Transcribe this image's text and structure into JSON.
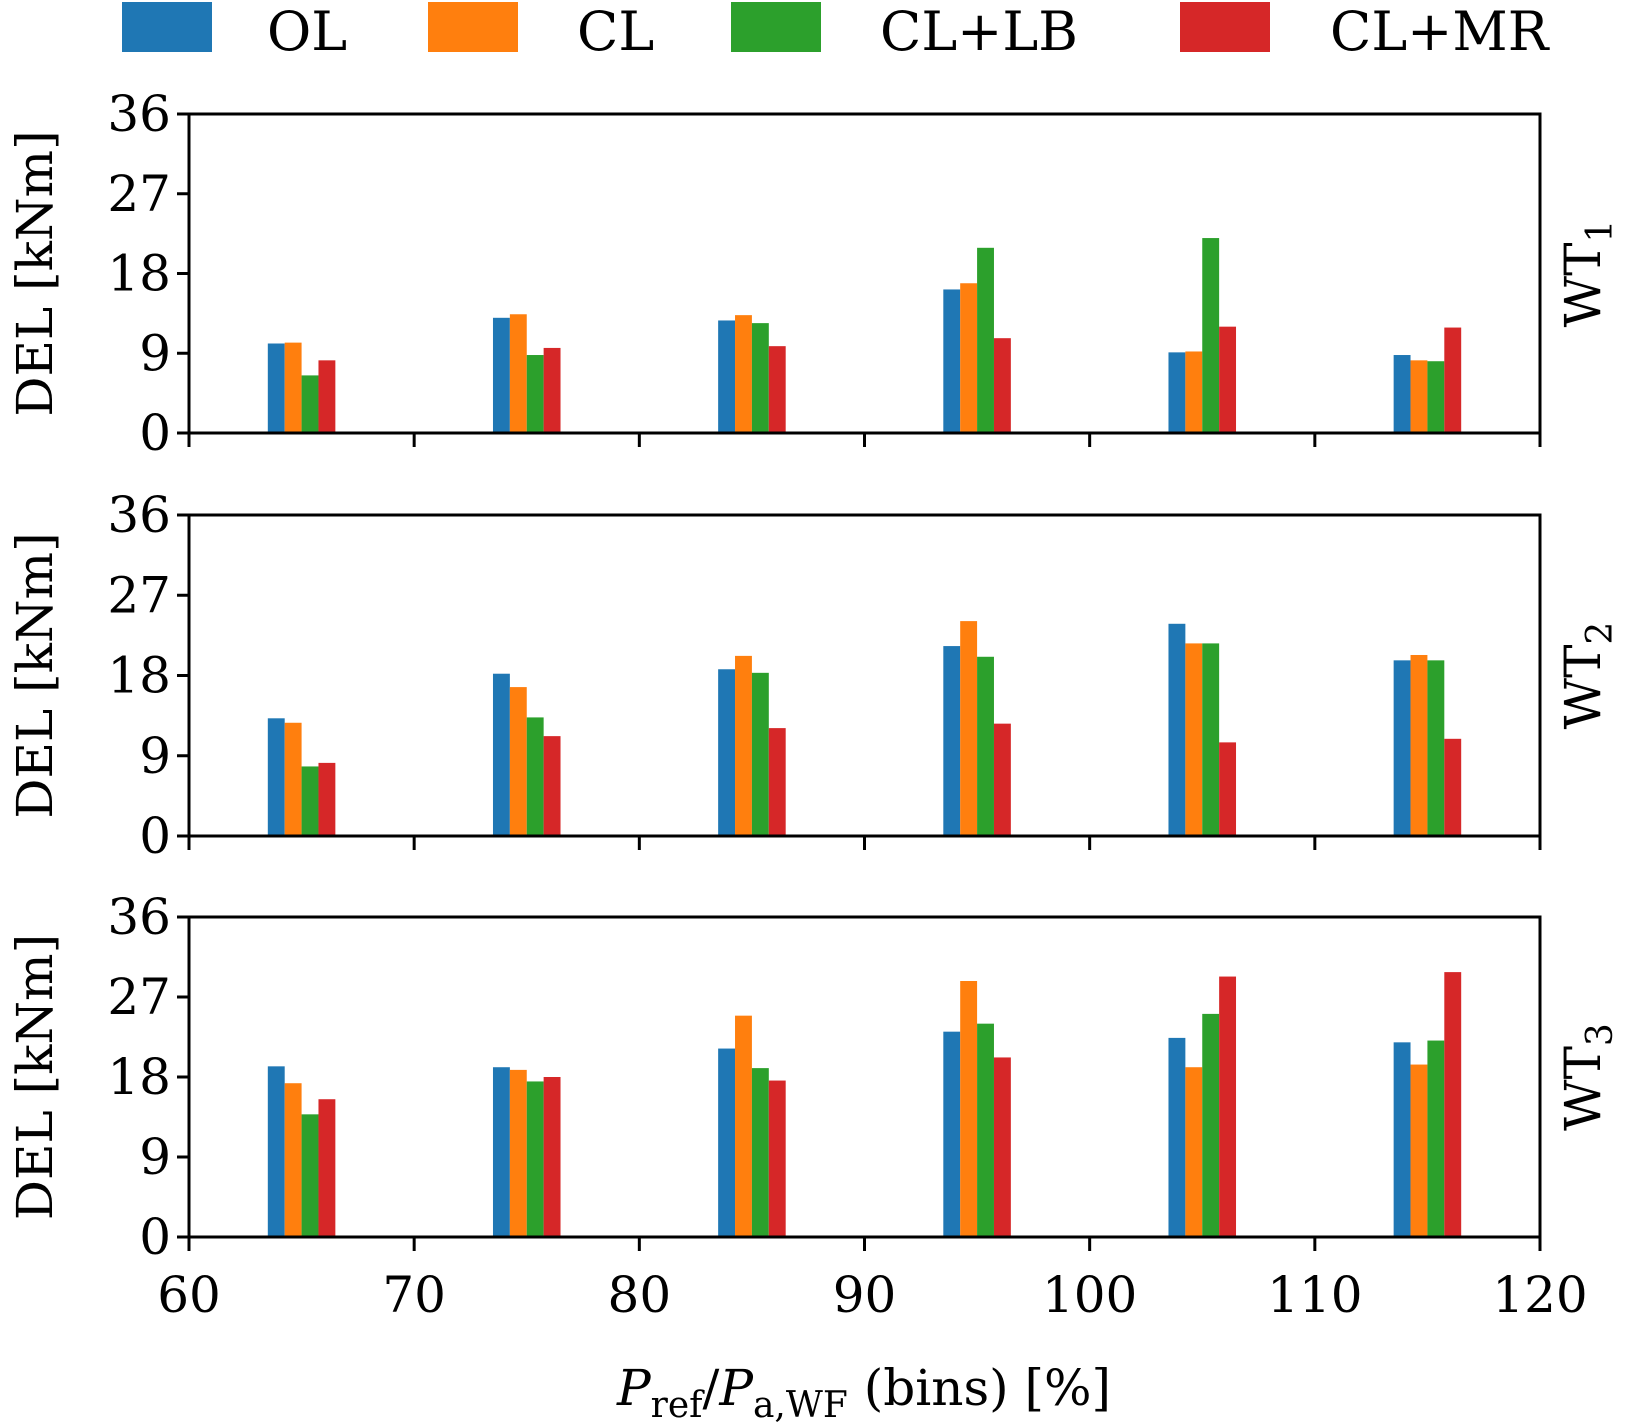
{
  "chart_data": {
    "type": "bar",
    "layout": "3 stacked subplots sharing x axis",
    "legend": {
      "placement": "top",
      "entries": [
        {
          "label": "OL",
          "color": "#1f77b4"
        },
        {
          "label": "CL",
          "color": "#ff7f0e"
        },
        {
          "label": "CL+LB",
          "color": "#2ca02c"
        },
        {
          "label": "CL+MR",
          "color": "#d62728"
        }
      ]
    },
    "xlabel": "P_ref / P_a,WF (bins) [%]",
    "xlabel_parts": {
      "P": "P",
      "ref": "ref",
      "slash": "/",
      "P2": "P",
      "sub2": "a,WF",
      "rest": " (bins) [%]"
    },
    "xlim": [
      60,
      120
    ],
    "xticks": [
      60,
      70,
      80,
      90,
      100,
      110,
      120
    ],
    "bin_centers": [
      65,
      75,
      85,
      95,
      105,
      115
    ],
    "series_names": [
      "OL",
      "CL",
      "CL+LB",
      "CL+MR"
    ],
    "subplots": [
      {
        "title": "WT",
        "title_sub": "1",
        "ylabel": "DEL [kNm]",
        "ylim": [
          0,
          36
        ],
        "yticks": [
          0,
          9,
          18,
          27,
          36
        ],
        "series": [
          {
            "name": "OL",
            "values": [
              10.1,
              13.0,
              12.7,
              16.2,
              9.1,
              8.8
            ]
          },
          {
            "name": "CL",
            "values": [
              10.2,
              13.4,
              13.3,
              16.9,
              9.2,
              8.2
            ]
          },
          {
            "name": "CL+LB",
            "values": [
              6.5,
              8.8,
              12.4,
              20.9,
              22.0,
              8.1
            ]
          },
          {
            "name": "CL+MR",
            "values": [
              8.2,
              9.6,
              9.8,
              10.7,
              12.0,
              11.9
            ]
          }
        ]
      },
      {
        "title": "WT",
        "title_sub": "2",
        "ylabel": "DEL [kNm]",
        "ylim": [
          0,
          36
        ],
        "yticks": [
          0,
          9,
          18,
          27,
          36
        ],
        "series": [
          {
            "name": "OL",
            "values": [
              13.2,
              18.2,
              18.7,
              21.3,
              23.8,
              19.7
            ]
          },
          {
            "name": "CL",
            "values": [
              12.7,
              16.7,
              20.2,
              24.1,
              21.6,
              20.3
            ]
          },
          {
            "name": "CL+LB",
            "values": [
              7.8,
              13.3,
              18.3,
              20.1,
              21.6,
              19.7
            ]
          },
          {
            "name": "CL+MR",
            "values": [
              8.2,
              11.2,
              12.1,
              12.6,
              10.5,
              10.9
            ]
          }
        ]
      },
      {
        "title": "WT",
        "title_sub": "3",
        "ylabel": "DEL [kNm]",
        "ylim": [
          0,
          36
        ],
        "yticks": [
          0,
          9,
          18,
          27,
          36
        ],
        "series": [
          {
            "name": "OL",
            "values": [
              19.2,
              19.1,
              21.2,
              23.1,
              22.4,
              21.9
            ]
          },
          {
            "name": "CL",
            "values": [
              17.3,
              18.8,
              24.9,
              28.8,
              19.1,
              19.4
            ]
          },
          {
            "name": "CL+LB",
            "values": [
              13.8,
              17.5,
              19.0,
              24.0,
              25.1,
              22.1
            ]
          },
          {
            "name": "CL+MR",
            "values": [
              15.5,
              18.0,
              17.6,
              20.2,
              29.3,
              29.8
            ]
          }
        ]
      }
    ],
    "grid": false
  }
}
